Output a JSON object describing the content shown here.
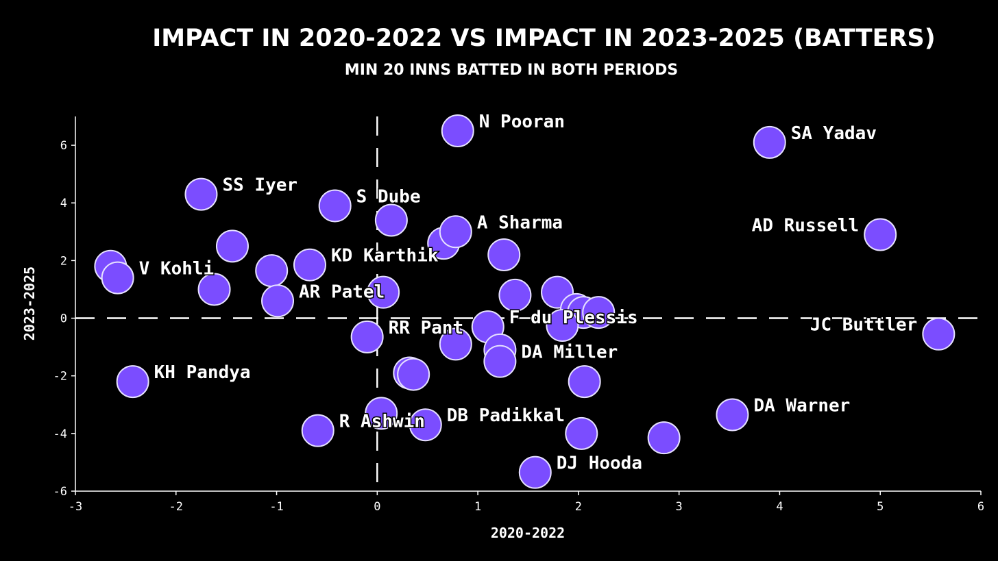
{
  "chart_data": {
    "type": "scatter",
    "title": "IMPACT IN 2020-2022 VS IMPACT IN 2023-2025 (BATTERS)",
    "subtitle": "MIN 20 INNS BATTED IN BOTH PERIODS",
    "xlabel": "2020-2022",
    "ylabel": "2023-2025",
    "xlim": [
      -3,
      6
    ],
    "ylim": [
      -6,
      7
    ],
    "xticks": [
      "-3",
      "-2",
      "-1",
      "0",
      "1",
      "2",
      "3",
      "4",
      "5",
      "6"
    ],
    "yticks": [
      "-6",
      "-4",
      "-2",
      "0",
      "2",
      "4",
      "6"
    ],
    "grid": false,
    "reference_lines": {
      "x": 0,
      "y": 0
    },
    "point_color": "#7b4dff",
    "points": [
      {
        "x": 0.8,
        "y": 6.5,
        "label": "N Pooran"
      },
      {
        "x": 3.9,
        "y": 6.1,
        "label": "SA Yadav"
      },
      {
        "x": -1.75,
        "y": 4.3,
        "label": "SS Iyer"
      },
      {
        "x": -0.42,
        "y": 3.9,
        "label": "S Dube"
      },
      {
        "x": 0.14,
        "y": 3.4,
        "label": ""
      },
      {
        "x": 0.66,
        "y": 2.6,
        "label": ""
      },
      {
        "x": 0.78,
        "y": 3.0,
        "label": "A Sharma"
      },
      {
        "x": 5.0,
        "y": 2.9,
        "label": "AD Russell"
      },
      {
        "x": -1.44,
        "y": 2.5,
        "label": ""
      },
      {
        "x": 1.26,
        "y": 2.2,
        "label": ""
      },
      {
        "x": -2.65,
        "y": 1.8,
        "label": ""
      },
      {
        "x": -2.58,
        "y": 1.4,
        "label": "V Kohli"
      },
      {
        "x": -1.05,
        "y": 1.65,
        "label": ""
      },
      {
        "x": -0.67,
        "y": 1.85,
        "label": "KD Karthik"
      },
      {
        "x": -1.62,
        "y": 1.0,
        "label": ""
      },
      {
        "x": -0.99,
        "y": 0.6,
        "label": "AR Patel"
      },
      {
        "x": 0.06,
        "y": 0.9,
        "label": ""
      },
      {
        "x": 1.37,
        "y": 0.8,
        "label": ""
      },
      {
        "x": 1.79,
        "y": 0.9,
        "label": ""
      },
      {
        "x": 1.98,
        "y": 0.3,
        "label": ""
      },
      {
        "x": 2.05,
        "y": 0.2,
        "label": ""
      },
      {
        "x": 2.2,
        "y": 0.2,
        "label": ""
      },
      {
        "x": 1.84,
        "y": -0.25,
        "label": ""
      },
      {
        "x": 1.1,
        "y": -0.3,
        "label": "F du Plessis"
      },
      {
        "x": 5.58,
        "y": -0.55,
        "label": "JC Buttler"
      },
      {
        "x": -0.1,
        "y": -0.65,
        "label": "RR Pant"
      },
      {
        "x": 0.78,
        "y": -0.9,
        "label": ""
      },
      {
        "x": 1.22,
        "y": -1.1,
        "label": ""
      },
      {
        "x": 1.22,
        "y": -1.5,
        "label": "DA Miller"
      },
      {
        "x": 0.32,
        "y": -1.9,
        "label": ""
      },
      {
        "x": 0.36,
        "y": -1.95,
        "label": ""
      },
      {
        "x": 2.06,
        "y": -2.2,
        "label": ""
      },
      {
        "x": -2.43,
        "y": -2.2,
        "label": "KH Pandya"
      },
      {
        "x": 0.04,
        "y": -3.3,
        "label": ""
      },
      {
        "x": 3.53,
        "y": -3.35,
        "label": "DA Warner"
      },
      {
        "x": 0.48,
        "y": -3.7,
        "label": "DB Padikkal"
      },
      {
        "x": -0.59,
        "y": -3.9,
        "label": "R Ashwin"
      },
      {
        "x": 2.03,
        "y": -4.0,
        "label": ""
      },
      {
        "x": 2.85,
        "y": -4.15,
        "label": ""
      },
      {
        "x": 1.57,
        "y": -5.35,
        "label": "DJ Hooda"
      }
    ]
  }
}
